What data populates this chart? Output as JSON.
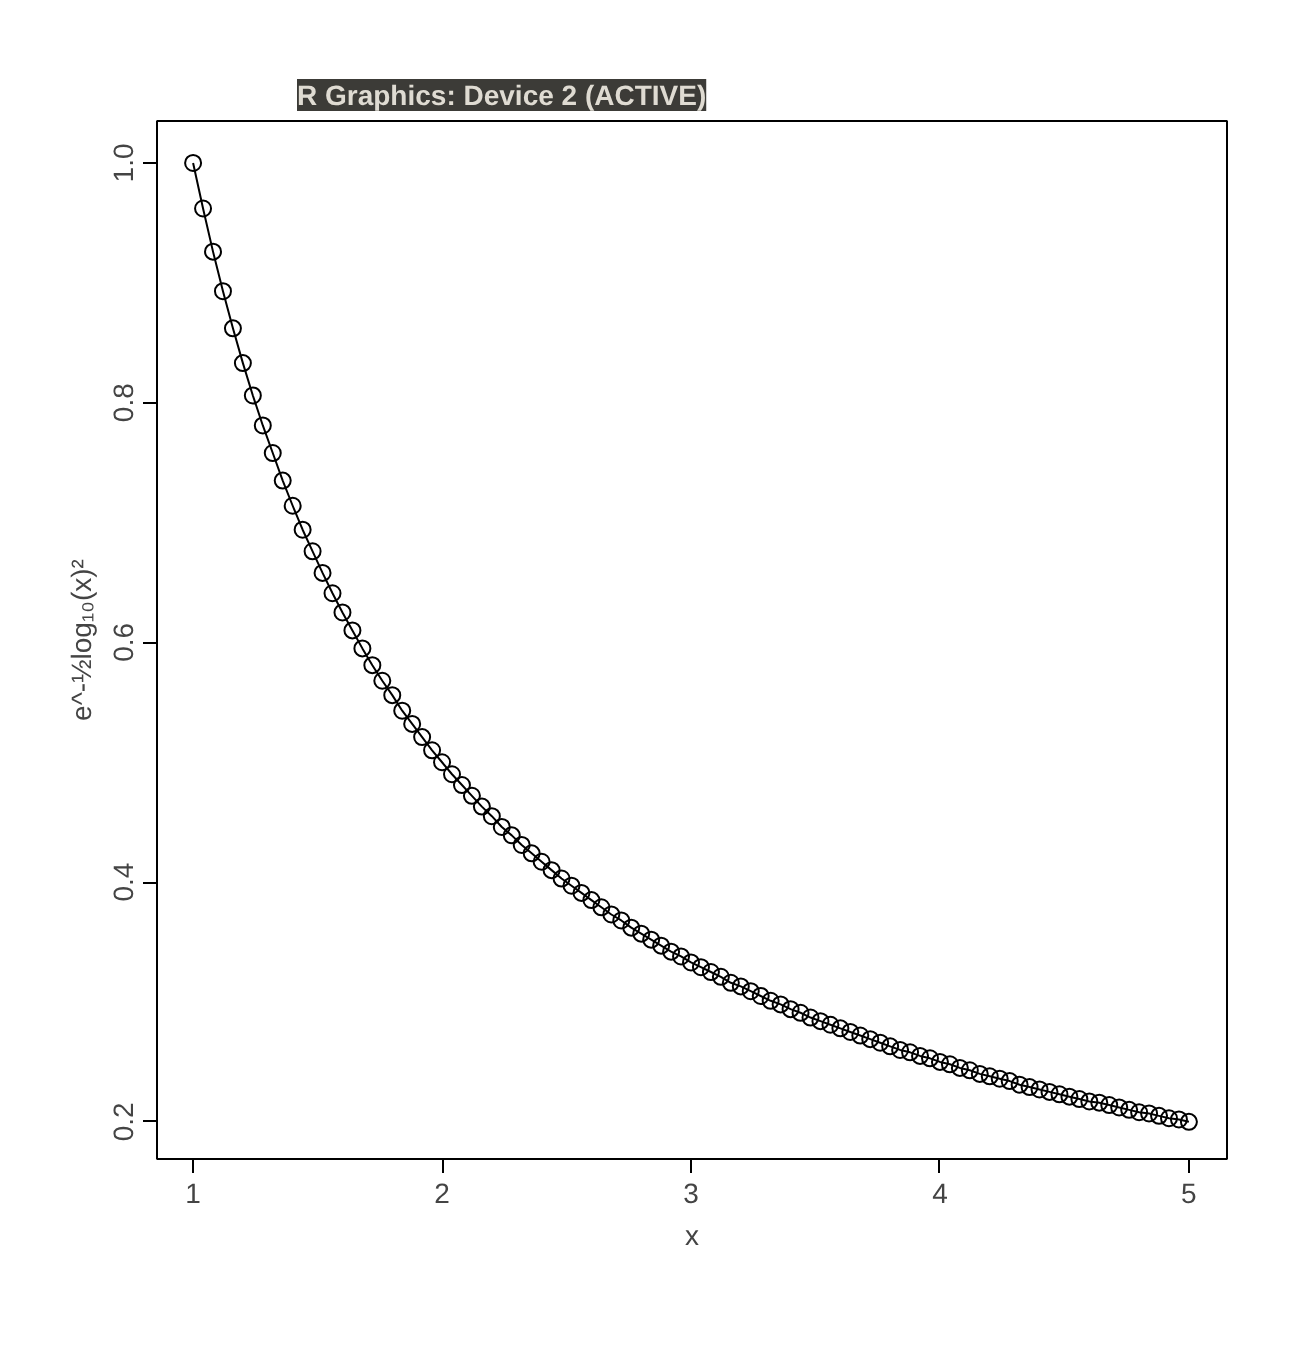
{
  "chart_data": {
    "type": "line",
    "title": "R Graphics: Device 2 (ACTIVE)",
    "xlabel": "x",
    "ylabel": "e^-½log₁₀(x)²",
    "x": [
      1.0,
      1.04,
      1.08,
      1.12,
      1.16,
      1.2,
      1.24,
      1.28,
      1.32,
      1.36,
      1.4,
      1.44,
      1.48,
      1.52,
      1.56,
      1.6,
      1.64,
      1.68,
      1.72,
      1.76,
      1.8,
      1.84,
      1.88,
      1.92,
      1.96,
      2.0,
      2.04,
      2.08,
      2.12,
      2.16,
      2.2,
      2.24,
      2.28,
      2.32,
      2.36,
      2.4,
      2.44,
      2.48,
      2.52,
      2.56,
      2.6,
      2.64,
      2.68,
      2.72,
      2.76,
      2.8,
      2.84,
      2.88,
      2.92,
      2.96,
      3.0,
      3.04,
      3.08,
      3.12,
      3.16,
      3.2,
      3.24,
      3.28,
      3.32,
      3.36,
      3.4,
      3.44,
      3.48,
      3.52,
      3.56,
      3.6,
      3.64,
      3.68,
      3.72,
      3.76,
      3.8,
      3.84,
      3.88,
      3.92,
      3.96,
      4.0,
      4.04,
      4.08,
      4.12,
      4.16,
      4.2,
      4.24,
      4.28,
      4.32,
      4.36,
      4.4,
      4.44,
      4.48,
      4.52,
      4.56,
      4.6,
      4.64,
      4.68,
      4.72,
      4.76,
      4.8,
      4.84,
      4.88,
      4.92,
      4.96,
      5.0
    ],
    "series": [
      {
        "color": "#000000",
        "values": [
          1.0,
          0.962,
          0.926,
          0.893,
          0.862,
          0.833,
          0.806,
          0.781,
          0.758,
          0.735,
          0.714,
          0.694,
          0.676,
          0.658,
          0.641,
          0.625,
          0.61,
          0.595,
          0.581,
          0.568,
          0.556,
          0.543,
          0.532,
          0.521,
          0.51,
          0.5,
          0.49,
          0.481,
          0.472,
          0.463,
          0.455,
          0.446,
          0.439,
          0.431,
          0.424,
          0.417,
          0.41,
          0.403,
          0.397,
          0.391,
          0.385,
          0.379,
          0.373,
          0.368,
          0.362,
          0.357,
          0.352,
          0.347,
          0.342,
          0.338,
          0.333,
          0.329,
          0.325,
          0.321,
          0.316,
          0.313,
          0.309,
          0.305,
          0.301,
          0.298,
          0.294,
          0.291,
          0.287,
          0.284,
          0.281,
          0.278,
          0.275,
          0.272,
          0.269,
          0.266,
          0.263,
          0.26,
          0.258,
          0.255,
          0.253,
          0.25,
          0.248,
          0.245,
          0.243,
          0.24,
          0.238,
          0.236,
          0.234,
          0.231,
          0.229,
          0.227,
          0.225,
          0.223,
          0.221,
          0.219,
          0.217,
          0.216,
          0.214,
          0.212,
          0.21,
          0.208,
          0.207,
          0.205,
          0.203,
          0.202,
          0.2
        ]
      }
    ],
    "xlim": [
      0.855,
      5.153
    ],
    "ylim": [
      0.169,
      1.035
    ],
    "xticks": [
      1,
      2,
      3,
      4,
      5
    ],
    "yticks": [
      0.2,
      0.4,
      0.6,
      0.8,
      {
        "value": 1,
        "label": "1.0"
      }
    ],
    "grid": false,
    "marker": "circle",
    "line_style": "solid"
  }
}
